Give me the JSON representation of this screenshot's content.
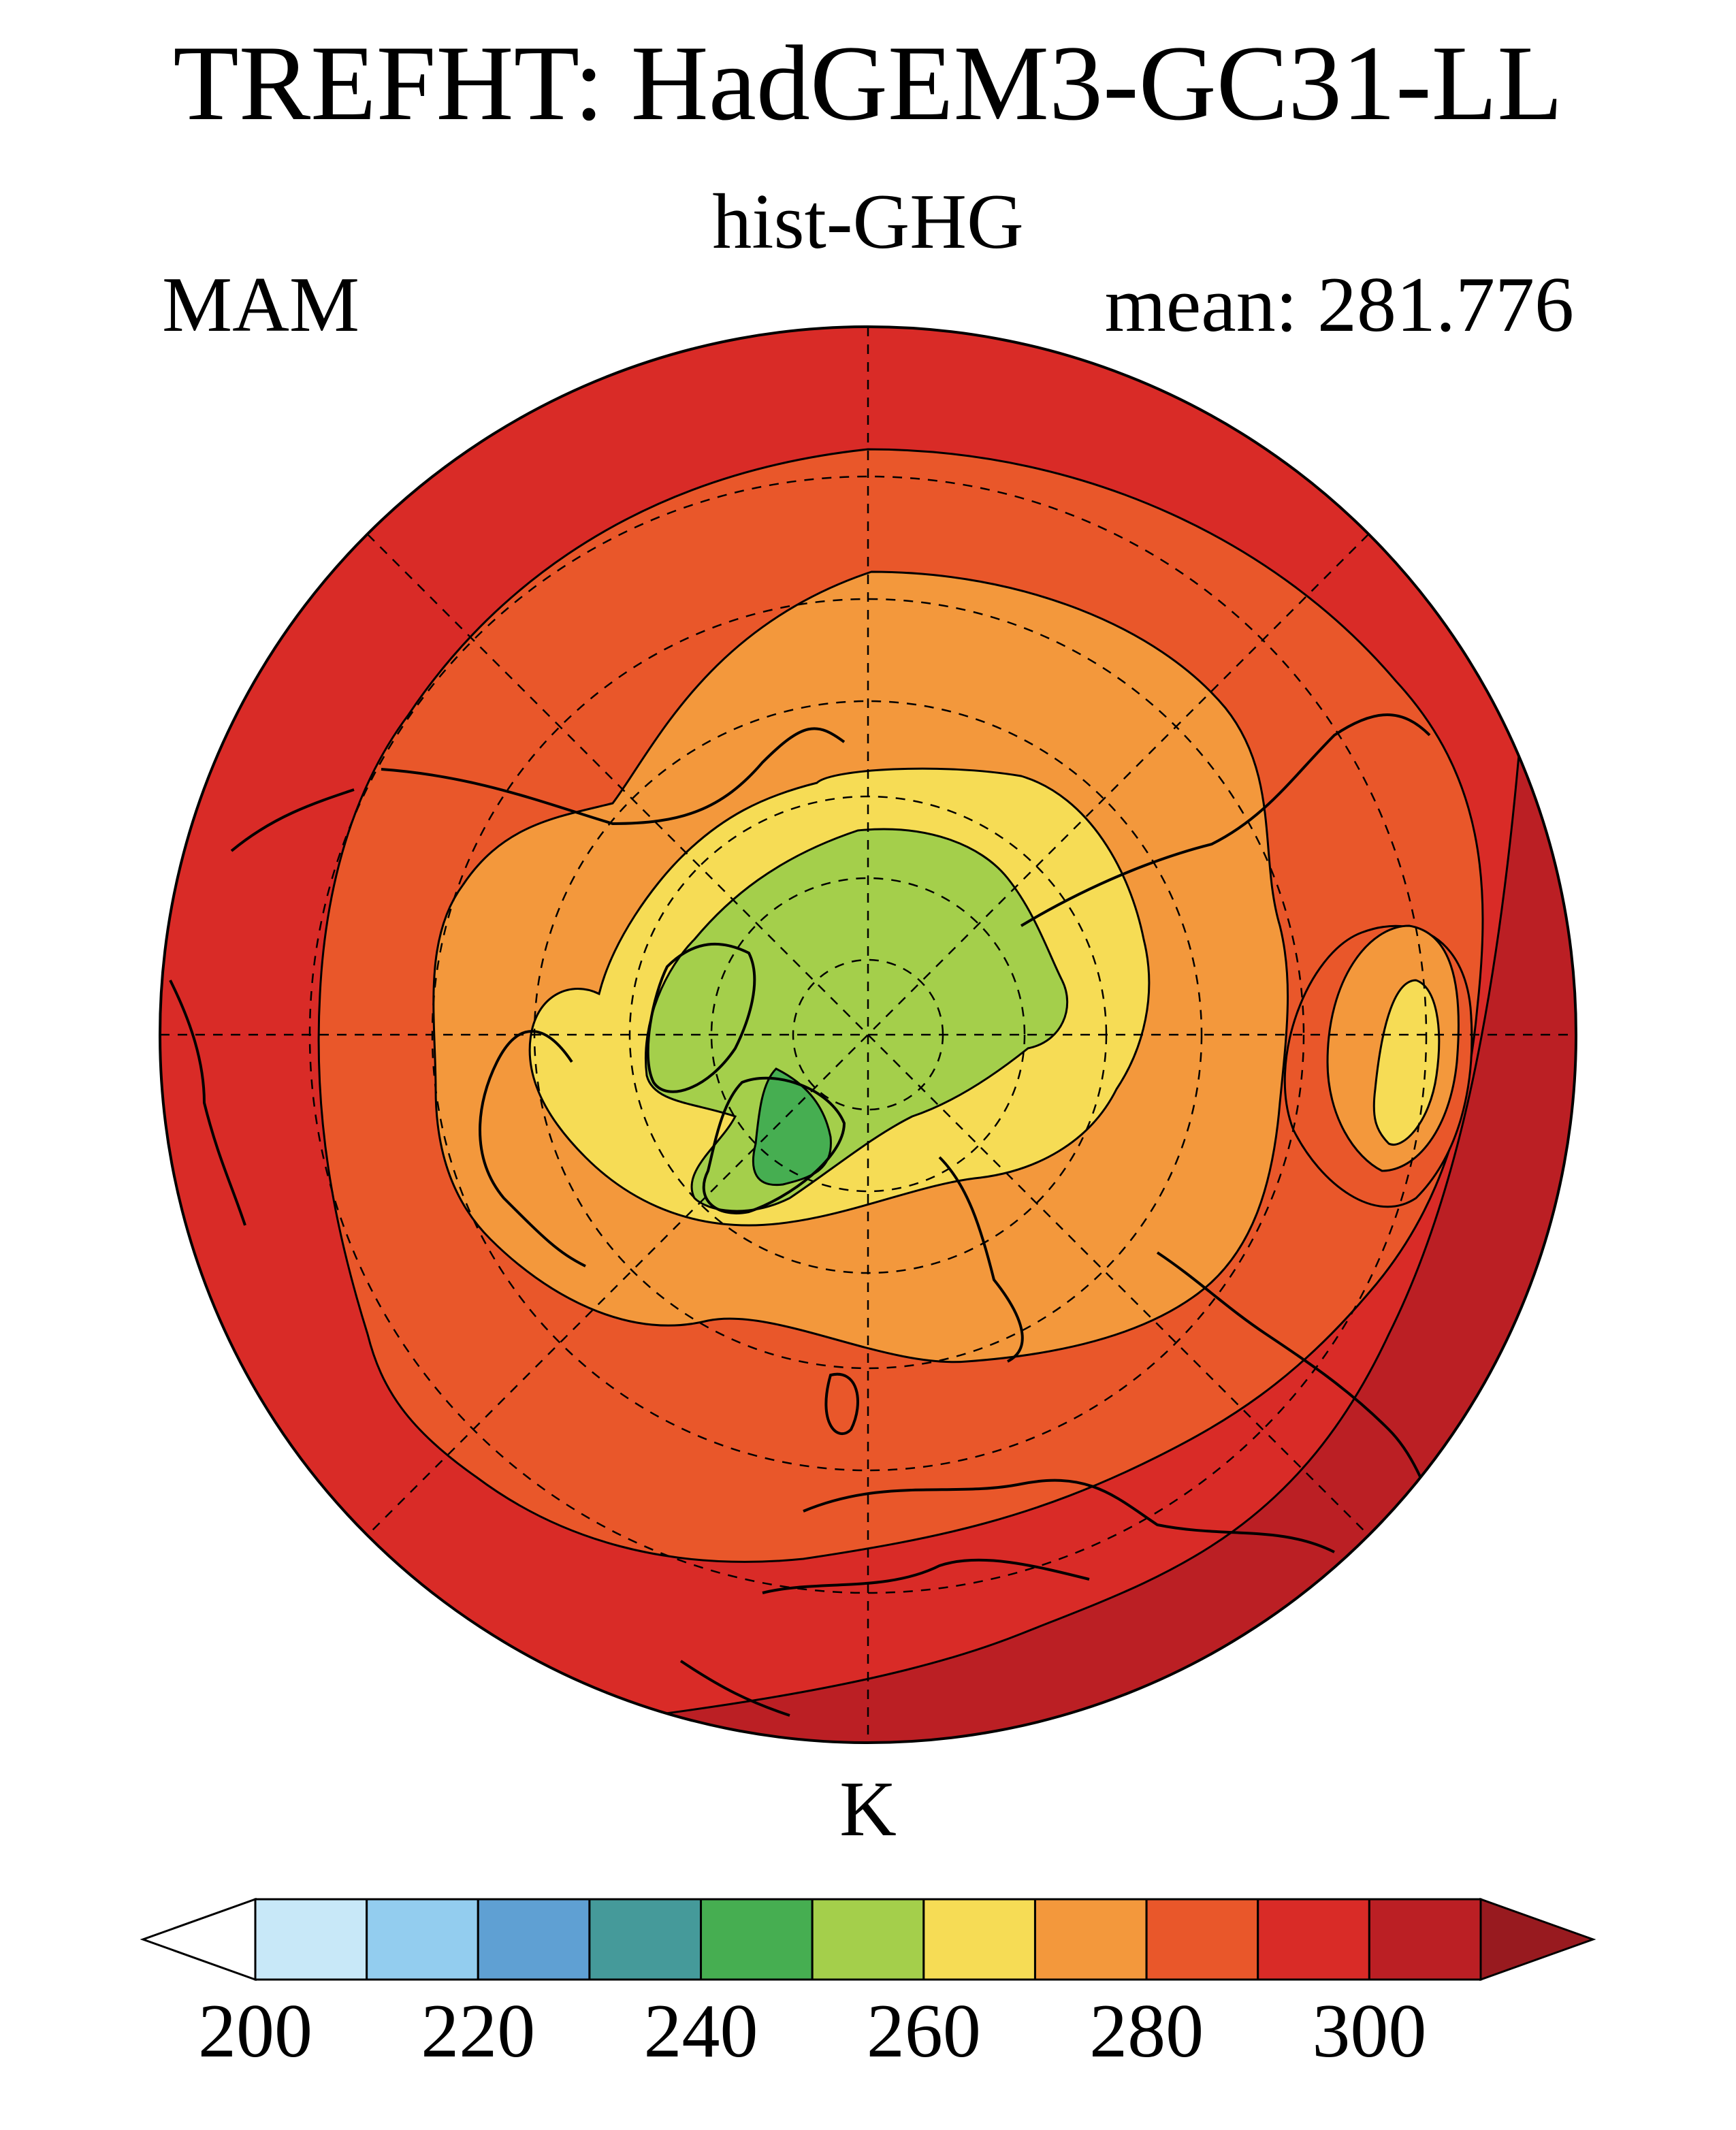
{
  "header": {
    "title": "TREFHT: HadGEM3-GC31-LL",
    "experiment": "hist-GHG",
    "season": "MAM",
    "mean_label": "mean: 281.776"
  },
  "map": {
    "projection": "north-polar-stereographic",
    "graticule": "dashed",
    "coastlines": true,
    "temperature_bands_outward": [
      {
        "value_range": "240-250 K",
        "color": "#46ae51"
      },
      {
        "value_range": "250-260 K",
        "color": "#a4cf4b"
      },
      {
        "value_range": "260-270 K",
        "color": "#f6dc55"
      },
      {
        "value_range": "270-280 K",
        "color": "#f3983c"
      },
      {
        "value_range": "280-290 K",
        "color": "#e9572a"
      },
      {
        "value_range": "290-300 K",
        "color": "#d92b27"
      },
      {
        "value_range": "300-310 K",
        "color": "#bb1f24"
      }
    ]
  },
  "colorbar": {
    "units": "K",
    "min": 200,
    "max": 310,
    "step": 10,
    "tick_labels": [
      "200",
      "220",
      "240",
      "260",
      "280",
      "300"
    ],
    "extend": "both",
    "colors": [
      "#c8e8f8",
      "#93cdef",
      "#5fa0d3",
      "#459a9a",
      "#46ae51",
      "#a4cf4b",
      "#f6dc55",
      "#f3983c",
      "#e9572a",
      "#d92b27",
      "#bb1f24"
    ],
    "below_color": "#ffffff",
    "above_color": "#981a1f"
  }
}
